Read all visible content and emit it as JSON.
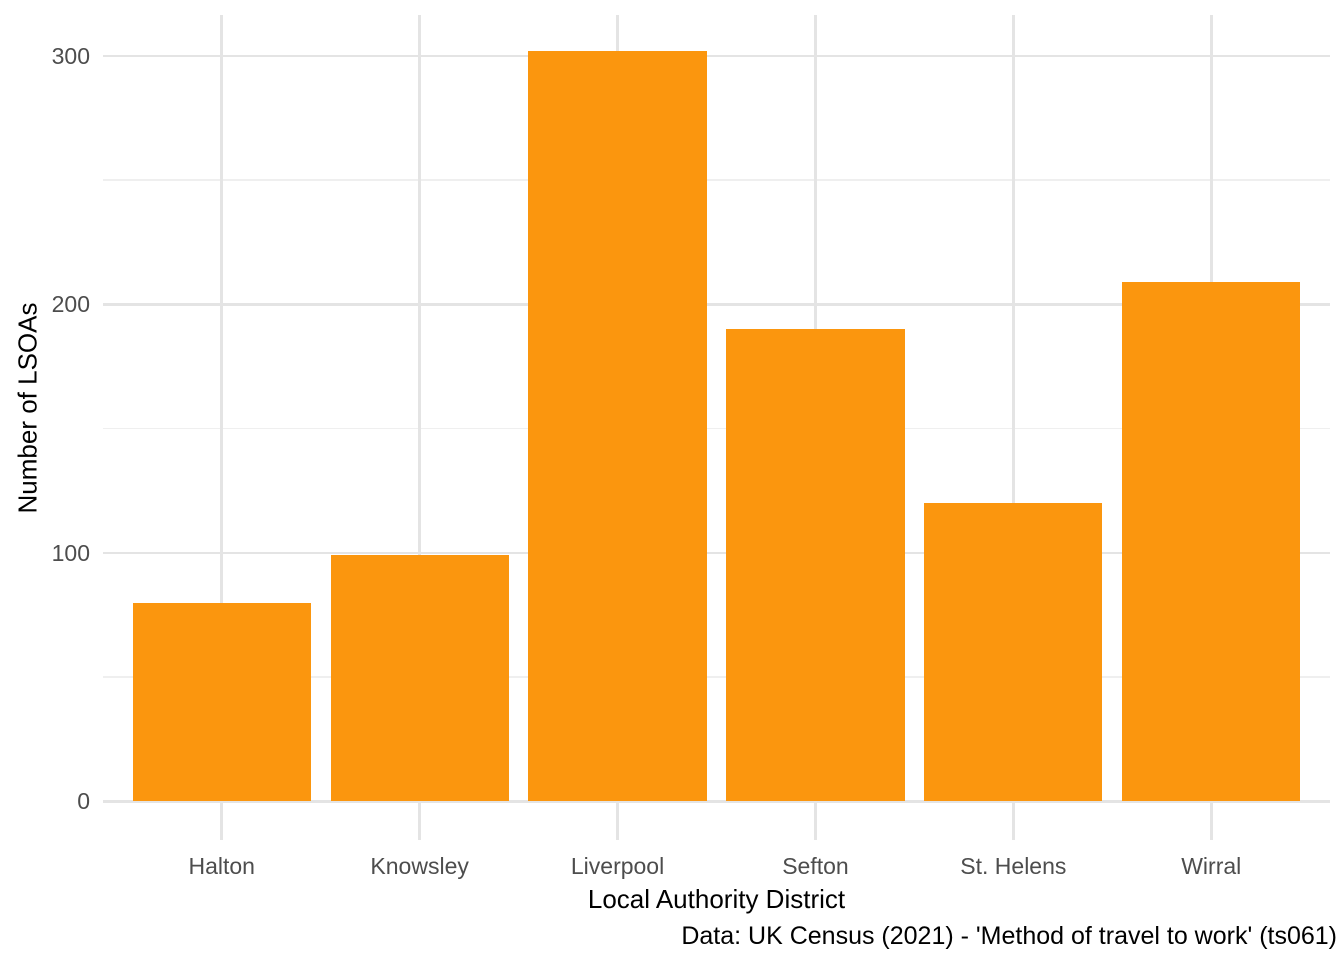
{
  "chart_data": {
    "type": "bar",
    "title": "",
    "categories": [
      "Halton",
      "Knowsley",
      "Liverpool",
      "Sefton",
      "St. Helens",
      "Wirral"
    ],
    "values": [
      80,
      99,
      302,
      190,
      120,
      209
    ],
    "xlabel": "Local Authority District",
    "ylabel": "Number of LSOAs",
    "caption": "Data: UK Census (2021) - 'Method of travel to work' (ts061)",
    "yticks": [
      0,
      100,
      200,
      300
    ],
    "yticks_minor": [
      50,
      150,
      250
    ],
    "ylim": [
      0,
      316
    ],
    "legend": "none",
    "grid": "major+minor",
    "colors": {
      "bar": "#FB960E",
      "grid_major": "#E4E4E4",
      "grid_minor": "#EFEFEF",
      "tick_label": "#4D4D4D",
      "title_text": "#000000",
      "background": "#FFFFFF"
    }
  }
}
